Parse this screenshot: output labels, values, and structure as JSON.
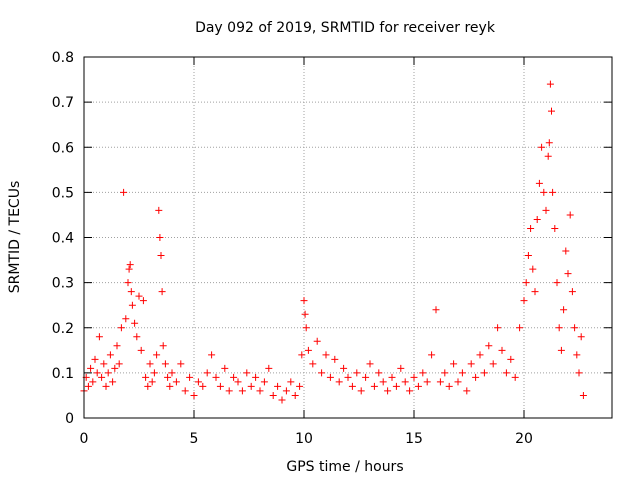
{
  "chart_data": {
    "type": "scatter",
    "title": "Day 092 of 2019, SRMTID for receiver reyk",
    "xlabel": "GPS time / hours",
    "ylabel": "SRMTID / TECUs",
    "xlim": [
      0,
      24
    ],
    "ylim": [
      0,
      0.8
    ],
    "xticks": [
      0,
      5,
      10,
      15,
      20
    ],
    "xtick_labels": [
      "0",
      "5",
      "10",
      "15",
      "20"
    ],
    "yticks": [
      0,
      0.1,
      0.2,
      0.3,
      0.4,
      0.5,
      0.6,
      0.7,
      0.8
    ],
    "ytick_labels": [
      "0",
      "0.1",
      "0.2",
      "0.3",
      "0.4",
      "0.5",
      "0.6",
      "0.7",
      "0.8"
    ],
    "grid": true,
    "marker": "+",
    "marker_color": "#ff0000",
    "series": [
      {
        "name": "SRMTID",
        "points": [
          [
            0.0,
            0.06
          ],
          [
            0.1,
            0.09
          ],
          [
            0.2,
            0.07
          ],
          [
            0.3,
            0.11
          ],
          [
            0.4,
            0.08
          ],
          [
            0.5,
            0.13
          ],
          [
            0.6,
            0.1
          ],
          [
            0.7,
            0.18
          ],
          [
            0.8,
            0.09
          ],
          [
            0.9,
            0.12
          ],
          [
            1.0,
            0.07
          ],
          [
            1.1,
            0.1
          ],
          [
            1.2,
            0.14
          ],
          [
            1.3,
            0.08
          ],
          [
            1.4,
            0.11
          ],
          [
            1.5,
            0.16
          ],
          [
            1.6,
            0.12
          ],
          [
            1.7,
            0.2
          ],
          [
            1.8,
            0.5
          ],
          [
            1.9,
            0.22
          ],
          [
            2.0,
            0.3
          ],
          [
            2.05,
            0.33
          ],
          [
            2.1,
            0.34
          ],
          [
            2.15,
            0.28
          ],
          [
            2.2,
            0.25
          ],
          [
            2.3,
            0.21
          ],
          [
            2.4,
            0.18
          ],
          [
            2.5,
            0.27
          ],
          [
            2.6,
            0.15
          ],
          [
            2.7,
            0.26
          ],
          [
            2.8,
            0.09
          ],
          [
            2.9,
            0.07
          ],
          [
            3.0,
            0.12
          ],
          [
            3.1,
            0.08
          ],
          [
            3.2,
            0.1
          ],
          [
            3.3,
            0.14
          ],
          [
            3.4,
            0.46
          ],
          [
            3.45,
            0.4
          ],
          [
            3.5,
            0.36
          ],
          [
            3.55,
            0.28
          ],
          [
            3.6,
            0.16
          ],
          [
            3.7,
            0.12
          ],
          [
            3.8,
            0.09
          ],
          [
            3.9,
            0.07
          ],
          [
            4.0,
            0.1
          ],
          [
            4.2,
            0.08
          ],
          [
            4.4,
            0.12
          ],
          [
            4.6,
            0.06
          ],
          [
            4.8,
            0.09
          ],
          [
            5.0,
            0.05
          ],
          [
            5.2,
            0.08
          ],
          [
            5.4,
            0.07
          ],
          [
            5.6,
            0.1
          ],
          [
            5.8,
            0.14
          ],
          [
            6.0,
            0.09
          ],
          [
            6.2,
            0.07
          ],
          [
            6.4,
            0.11
          ],
          [
            6.6,
            0.06
          ],
          [
            6.8,
            0.09
          ],
          [
            7.0,
            0.08
          ],
          [
            7.2,
            0.06
          ],
          [
            7.4,
            0.1
          ],
          [
            7.6,
            0.07
          ],
          [
            7.8,
            0.09
          ],
          [
            8.0,
            0.06
          ],
          [
            8.2,
            0.08
          ],
          [
            8.4,
            0.11
          ],
          [
            8.6,
            0.05
          ],
          [
            8.8,
            0.07
          ],
          [
            9.0,
            0.04
          ],
          [
            9.2,
            0.06
          ],
          [
            9.4,
            0.08
          ],
          [
            9.6,
            0.05
          ],
          [
            9.8,
            0.07
          ],
          [
            9.9,
            0.14
          ],
          [
            10.0,
            0.26
          ],
          [
            10.05,
            0.23
          ],
          [
            10.1,
            0.2
          ],
          [
            10.2,
            0.15
          ],
          [
            10.4,
            0.12
          ],
          [
            10.6,
            0.17
          ],
          [
            10.8,
            0.1
          ],
          [
            11.0,
            0.14
          ],
          [
            11.2,
            0.09
          ],
          [
            11.4,
            0.13
          ],
          [
            11.6,
            0.08
          ],
          [
            11.8,
            0.11
          ],
          [
            12.0,
            0.09
          ],
          [
            12.2,
            0.07
          ],
          [
            12.4,
            0.1
          ],
          [
            12.6,
            0.06
          ],
          [
            12.8,
            0.09
          ],
          [
            13.0,
            0.12
          ],
          [
            13.2,
            0.07
          ],
          [
            13.4,
            0.1
          ],
          [
            13.6,
            0.08
          ],
          [
            13.8,
            0.06
          ],
          [
            14.0,
            0.09
          ],
          [
            14.2,
            0.07
          ],
          [
            14.4,
            0.11
          ],
          [
            14.6,
            0.08
          ],
          [
            14.8,
            0.06
          ],
          [
            15.0,
            0.09
          ],
          [
            15.2,
            0.07
          ],
          [
            15.4,
            0.1
          ],
          [
            15.6,
            0.08
          ],
          [
            15.8,
            0.14
          ],
          [
            16.0,
            0.24
          ],
          [
            16.2,
            0.08
          ],
          [
            16.4,
            0.1
          ],
          [
            16.6,
            0.07
          ],
          [
            16.8,
            0.12
          ],
          [
            17.0,
            0.08
          ],
          [
            17.2,
            0.1
          ],
          [
            17.4,
            0.06
          ],
          [
            17.6,
            0.12
          ],
          [
            17.8,
            0.09
          ],
          [
            18.0,
            0.14
          ],
          [
            18.2,
            0.1
          ],
          [
            18.4,
            0.16
          ],
          [
            18.6,
            0.12
          ],
          [
            18.8,
            0.2
          ],
          [
            19.0,
            0.15
          ],
          [
            19.2,
            0.1
          ],
          [
            19.4,
            0.13
          ],
          [
            19.6,
            0.09
          ],
          [
            19.8,
            0.2
          ],
          [
            20.0,
            0.26
          ],
          [
            20.1,
            0.3
          ],
          [
            20.2,
            0.36
          ],
          [
            20.3,
            0.42
          ],
          [
            20.4,
            0.33
          ],
          [
            20.5,
            0.28
          ],
          [
            20.6,
            0.44
          ],
          [
            20.7,
            0.52
          ],
          [
            20.8,
            0.6
          ],
          [
            20.9,
            0.5
          ],
          [
            21.0,
            0.46
          ],
          [
            21.1,
            0.58
          ],
          [
            21.15,
            0.61
          ],
          [
            21.2,
            0.74
          ],
          [
            21.25,
            0.68
          ],
          [
            21.3,
            0.5
          ],
          [
            21.4,
            0.42
          ],
          [
            21.5,
            0.3
          ],
          [
            21.6,
            0.2
          ],
          [
            21.7,
            0.15
          ],
          [
            21.8,
            0.24
          ],
          [
            21.9,
            0.37
          ],
          [
            22.0,
            0.32
          ],
          [
            22.1,
            0.45
          ],
          [
            22.2,
            0.28
          ],
          [
            22.3,
            0.2
          ],
          [
            22.4,
            0.14
          ],
          [
            22.5,
            0.1
          ],
          [
            22.6,
            0.18
          ],
          [
            22.7,
            0.05
          ]
        ]
      }
    ]
  }
}
